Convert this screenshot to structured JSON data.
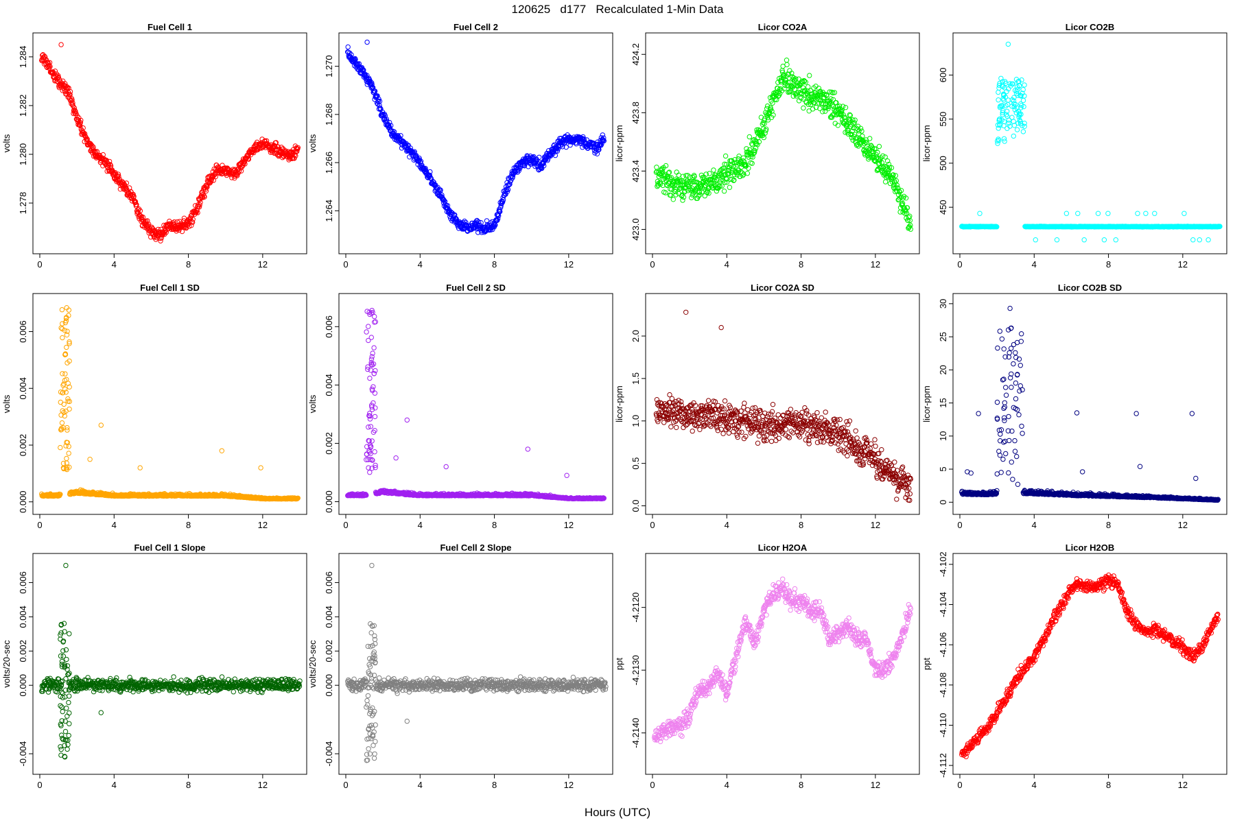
{
  "figure": {
    "title": "120625   d177   Recalculated 1-Min Data",
    "xlabel": "Hours (UTC)"
  },
  "chart_data": [
    {
      "id": "fc1",
      "type": "scatter",
      "title": "Fuel Cell 1",
      "ylabel": "volts",
      "color": "#ff0000",
      "xlim": [
        0,
        14
      ],
      "ylim": [
        1.2762,
        1.2847
      ],
      "xticks": [
        0,
        4,
        8,
        12
      ],
      "yticks": [
        1.278,
        1.28,
        1.282,
        1.284
      ],
      "yticklabels": [
        "1.278",
        "1.280",
        "1.282",
        "1.284"
      ],
      "x": [
        0.1,
        0.5,
        1.0,
        1.5,
        2.0,
        2.5,
        3.0,
        3.5,
        4.0,
        4.5,
        5.0,
        5.5,
        6.0,
        6.5,
        7.0,
        7.5,
        8.0,
        8.5,
        9.0,
        9.5,
        10.0,
        10.5,
        11.0,
        11.5,
        12.0,
        12.5,
        13.0,
        13.5,
        13.9
      ],
      "y": [
        1.284,
        1.2836,
        1.283,
        1.2826,
        1.2815,
        1.2806,
        1.28,
        1.2797,
        1.2792,
        1.2787,
        1.2782,
        1.2773,
        1.2768,
        1.2767,
        1.2771,
        1.277,
        1.2772,
        1.2778,
        1.2788,
        1.2793,
        1.2794,
        1.2792,
        1.2797,
        1.2802,
        1.2804,
        1.2803,
        1.2801,
        1.2799,
        1.2803
      ],
      "outliers": {
        "x": [
          1.15
        ],
        "y": [
          1.2845
        ]
      }
    },
    {
      "id": "fc2",
      "type": "scatter",
      "title": "Fuel Cell 2",
      "ylabel": "volts",
      "color": "#0000ff",
      "xlim": [
        0,
        14
      ],
      "ylim": [
        1.2625,
        1.2711
      ],
      "xticks": [
        0,
        4,
        8,
        12
      ],
      "yticks": [
        1.264,
        1.266,
        1.268,
        1.27
      ],
      "yticklabels": [
        "1.264",
        "1.266",
        "1.268",
        "1.270"
      ],
      "x": [
        0.1,
        0.5,
        1.0,
        1.5,
        2.0,
        2.5,
        3.0,
        3.5,
        4.0,
        4.5,
        5.0,
        5.5,
        6.0,
        6.5,
        7.0,
        7.5,
        8.0,
        8.5,
        9.0,
        9.5,
        10.0,
        10.5,
        11.0,
        11.5,
        12.0,
        12.5,
        13.0,
        13.5,
        13.9
      ],
      "y": [
        1.2706,
        1.2701,
        1.2697,
        1.269,
        1.268,
        1.2672,
        1.2669,
        1.2665,
        1.2659,
        1.2654,
        1.2648,
        1.264,
        1.2635,
        1.2633,
        1.2634,
        1.2633,
        1.2634,
        1.2646,
        1.2656,
        1.266,
        1.2661,
        1.2659,
        1.2664,
        1.2668,
        1.267,
        1.267,
        1.2668,
        1.2666,
        1.267
      ],
      "outliers": {
        "x": [
          1.15
        ],
        "y": [
          1.271
        ]
      }
    },
    {
      "id": "co2a",
      "type": "scatter",
      "title": "Licor CO2A",
      "ylabel": "licor-ppm",
      "color": "#00ee00",
      "xlim": [
        0,
        14
      ],
      "ylim": [
        422.88,
        424.3
      ],
      "xticks": [
        0,
        4,
        8,
        12
      ],
      "yticks": [
        423.0,
        423.4,
        423.8,
        424.2
      ],
      "yticklabels": [
        "423.0",
        "423.4",
        "423.8",
        "424.2"
      ],
      "x": [
        0.2,
        1.0,
        2.0,
        3.0,
        4.0,
        5.0,
        6.0,
        7.0,
        8.0,
        9.0,
        10.0,
        11.0,
        12.0,
        12.8,
        13.5,
        13.9
      ],
      "y": [
        423.38,
        423.3,
        423.28,
        423.3,
        423.38,
        423.45,
        423.72,
        424.05,
        423.95,
        423.9,
        423.82,
        423.65,
        423.5,
        423.38,
        423.18,
        423.0
      ],
      "spread": 0.16
    },
    {
      "id": "co2b",
      "type": "scatter",
      "title": "Licor CO2B",
      "ylabel": "licor-ppm",
      "color": "#00ffff",
      "xlim": [
        0,
        14
      ],
      "ylim": [
        405,
        640
      ],
      "xticks": [
        0,
        4,
        8,
        12
      ],
      "yticks": [
        450,
        500,
        550,
        600
      ],
      "yticklabels": [
        "450",
        "500",
        "550",
        "600"
      ],
      "x": [
        0.1,
        1.5,
        1.9,
        3.5,
        3.7,
        14.0
      ],
      "y": [
        428,
        428,
        428,
        428,
        428,
        428
      ],
      "burst": {
        "x0": 2.0,
        "x1": 3.5,
        "ymin": 520,
        "ymax": 597,
        "peak_x": 2.6,
        "peak_y": 635
      }
    },
    {
      "id": "fc1sd",
      "type": "scatter",
      "title": "Fuel Cell 1 SD",
      "ylabel": "volts",
      "color": "#ffa500",
      "xlim": [
        0,
        14
      ],
      "ylim": [
        -0.0002,
        0.0071
      ],
      "xticks": [
        0,
        4,
        8,
        12
      ],
      "yticks": [
        0.0,
        0.002,
        0.004,
        0.006
      ],
      "yticklabels": [
        "0.000",
        "0.002",
        "0.004",
        "0.006"
      ],
      "x": [
        0.1,
        1.0,
        2.0,
        4.0,
        6.0,
        8.0,
        10.0,
        12.0,
        13.9
      ],
      "y": [
        0.0002,
        0.0002,
        0.0003,
        0.0002,
        0.0002,
        0.0002,
        0.0002,
        0.0001,
        0.0001
      ],
      "burst": {
        "x0": 1.1,
        "x1": 1.6,
        "ymin": 0.001,
        "ymax": 0.0069
      },
      "outliers": {
        "x": [
          3.3,
          9.8,
          11.9,
          2.7,
          5.4
        ],
        "y": [
          0.0027,
          0.0018,
          0.0012,
          0.0015,
          0.0012
        ]
      }
    },
    {
      "id": "fc2sd",
      "type": "scatter",
      "title": "Fuel Cell 2 SD",
      "ylabel": "volts",
      "color": "#a020f0",
      "xlim": [
        0,
        14
      ],
      "ylim": [
        -0.0002,
        0.0069
      ],
      "xticks": [
        0,
        4,
        8,
        12
      ],
      "yticks": [
        0.0,
        0.002,
        0.004,
        0.006
      ],
      "yticklabels": [
        "0.000",
        "0.002",
        "0.004",
        "0.006"
      ],
      "x": [
        0.1,
        1.0,
        2.0,
        4.0,
        6.0,
        8.0,
        10.0,
        12.0,
        13.9
      ],
      "y": [
        0.0002,
        0.0002,
        0.0003,
        0.0002,
        0.0002,
        0.0002,
        0.0002,
        0.0001,
        0.0001
      ],
      "burst": {
        "x0": 1.1,
        "x1": 1.6,
        "ymin": 0.001,
        "ymax": 0.0068
      },
      "outliers": {
        "x": [
          3.3,
          9.8,
          11.9,
          2.7,
          5.4
        ],
        "y": [
          0.0028,
          0.0018,
          0.0009,
          0.0015,
          0.0012
        ]
      }
    },
    {
      "id": "co2asd",
      "type": "scatter",
      "title": "Licor CO2A SD",
      "ylabel": "licor-ppm",
      "color": "#8b0000",
      "xlim": [
        0,
        14
      ],
      "ylim": [
        -0.02,
        2.42
      ],
      "xticks": [
        0,
        4,
        8,
        12
      ],
      "yticks": [
        0.0,
        0.5,
        1.0,
        1.5,
        2.0
      ],
      "yticklabels": [
        "0.0",
        "0.5",
        "1.0",
        "1.5",
        "2.0"
      ],
      "x": [
        0.2,
        2.0,
        4.0,
        6.0,
        8.0,
        10.0,
        11.0,
        12.0,
        13.0,
        13.9
      ],
      "y": [
        1.15,
        1.05,
        1.05,
        0.95,
        0.95,
        0.85,
        0.7,
        0.55,
        0.35,
        0.18
      ],
      "spread": 0.32,
      "outliers": {
        "x": [
          1.8,
          3.7
        ],
        "y": [
          2.28,
          2.1
        ]
      }
    },
    {
      "id": "co2bsd",
      "type": "scatter",
      "title": "Licor CO2B SD",
      "ylabel": "licor-ppm",
      "color": "#000080",
      "xlim": [
        0,
        14
      ],
      "ylim": [
        -0.8,
        30.5
      ],
      "xticks": [
        0,
        4,
        8,
        12
      ],
      "yticks": [
        0,
        5,
        10,
        15,
        20,
        25,
        30
      ],
      "yticklabels": [
        "0",
        "5",
        "10",
        "15",
        "20",
        "25",
        "30"
      ],
      "x": [
        0.1,
        1.5,
        1.9,
        3.5,
        6.0,
        10.0,
        13.9
      ],
      "y": [
        1.2,
        1.1,
        1.2,
        1.3,
        1.0,
        0.7,
        0.3
      ],
      "burst": {
        "x0": 2.0,
        "x1": 3.4,
        "ymin": 2.5,
        "ymax": 26.5
      },
      "outliers": {
        "x": [
          1.0,
          6.3,
          9.5,
          12.5,
          2.7,
          3.3,
          0.4,
          0.6,
          6.6,
          9.7,
          12.7
        ],
        "y": [
          13.4,
          13.5,
          13.4,
          13.4,
          29.3,
          24.3,
          4.6,
          4.4,
          4.6,
          5.4,
          3.6
        ]
      }
    },
    {
      "id": "fc1slope",
      "type": "scatter",
      "title": "Fuel Cell 1 Slope",
      "ylabel": "volts/20-sec",
      "color": "#006400",
      "xlim": [
        0,
        14
      ],
      "ylim": [
        -0.0048,
        0.0073
      ],
      "xticks": [
        0,
        4,
        8,
        12
      ],
      "yticks": [
        -0.004,
        0.0,
        0.002,
        0.004,
        0.006
      ],
      "yticklabels": [
        "-0.004",
        "0.000",
        "0.002",
        "0.004",
        "0.006"
      ],
      "x": [
        0.1,
        14.0
      ],
      "y": [
        0.0,
        0.0
      ],
      "spread": 0.0006,
      "burst": {
        "x0": 1.1,
        "x1": 1.6,
        "ymin": -0.0044,
        "ymax": 0.0037
      },
      "outliers": {
        "x": [
          1.4,
          3.3
        ],
        "y": [
          0.007,
          -0.0016
        ]
      }
    },
    {
      "id": "fc2slope",
      "type": "scatter",
      "title": "Fuel Cell 2 Slope",
      "ylabel": "volts/20-sec",
      "color": "#808080",
      "xlim": [
        0,
        14
      ],
      "ylim": [
        -0.0048,
        0.0073
      ],
      "xticks": [
        0,
        4,
        8,
        12
      ],
      "yticks": [
        -0.004,
        0.0,
        0.002,
        0.004,
        0.006
      ],
      "yticklabels": [
        "-0.004",
        "0.000",
        "0.002",
        "0.004",
        "0.006"
      ],
      "x": [
        0.1,
        14.0
      ],
      "y": [
        0.0,
        0.0
      ],
      "spread": 0.0006,
      "burst": {
        "x0": 1.1,
        "x1": 1.6,
        "ymin": -0.0044,
        "ymax": 0.0037
      },
      "outliers": {
        "x": [
          1.4,
          3.3
        ],
        "y": [
          0.007,
          -0.0021
        ]
      }
    },
    {
      "id": "h2oa",
      "type": "scatter",
      "title": "Licor H2OA",
      "ylabel": "ppt",
      "color": "#ee82ee",
      "xlim": [
        0,
        14
      ],
      "ylim": [
        -4.21455,
        -4.21125
      ],
      "xticks": [
        0,
        4,
        8,
        12
      ],
      "yticks": [
        -4.214,
        -4.213,
        -4.212
      ],
      "yticklabels": [
        "-4.2140",
        "-4.2130",
        "-4.2120"
      ],
      "x": [
        0.1,
        0.5,
        1.0,
        1.5,
        2.0,
        2.5,
        3.0,
        3.5,
        4.0,
        4.5,
        5.0,
        5.5,
        6.0,
        6.5,
        7.0,
        7.5,
        8.0,
        8.5,
        9.0,
        9.5,
        10.0,
        10.5,
        11.0,
        11.5,
        12.0,
        12.5,
        13.0,
        13.5,
        13.9
      ],
      "y": [
        -4.2141,
        -4.214,
        -4.2139,
        -4.2139,
        -4.2137,
        -4.2133,
        -4.2133,
        -4.213,
        -4.2134,
        -4.2128,
        -4.2122,
        -4.2126,
        -4.212,
        -4.2118,
        -4.2117,
        -4.2119,
        -4.2119,
        -4.2121,
        -4.212,
        -4.2125,
        -4.2124,
        -4.2123,
        -4.2125,
        -4.2125,
        -4.213,
        -4.213,
        -4.2128,
        -4.2124,
        -4.212
      ],
      "spread": 0.00025
    },
    {
      "id": "h2ob",
      "type": "scatter",
      "title": "Licor H2OB",
      "ylabel": "ppt",
      "color": "#ff0000",
      "xlim": [
        0,
        14
      ],
      "ylim": [
        -4.1121,
        -4.1018
      ],
      "xticks": [
        0,
        4,
        8,
        12
      ],
      "yticks": [
        -4.112,
        -4.11,
        -4.108,
        -4.106,
        -4.104,
        -4.102
      ],
      "yticklabels": [
        "-4.112",
        "-4.110",
        "-4.108",
        "-4.106",
        "-4.104",
        "-4.102"
      ],
      "x": [
        0.1,
        0.5,
        1.0,
        1.5,
        2.0,
        2.5,
        3.0,
        3.5,
        4.0,
        4.5,
        5.0,
        5.5,
        6.0,
        6.5,
        7.0,
        7.5,
        8.0,
        8.5,
        9.0,
        9.5,
        10.0,
        10.5,
        11.0,
        11.5,
        12.0,
        12.5,
        13.0,
        13.5,
        13.9
      ],
      "y": [
        -4.1115,
        -4.1111,
        -4.1106,
        -4.1101,
        -4.1094,
        -4.1086,
        -4.1078,
        -4.1072,
        -4.1066,
        -4.1058,
        -4.1048,
        -4.104,
        -4.1032,
        -4.103,
        -4.1031,
        -4.103,
        -4.1028,
        -4.103,
        -4.1043,
        -4.105,
        -4.1054,
        -4.1052,
        -4.1055,
        -4.1058,
        -4.1061,
        -4.1066,
        -4.1062,
        -4.1052,
        -4.1046
      ],
      "spread": 0.0005
    }
  ]
}
